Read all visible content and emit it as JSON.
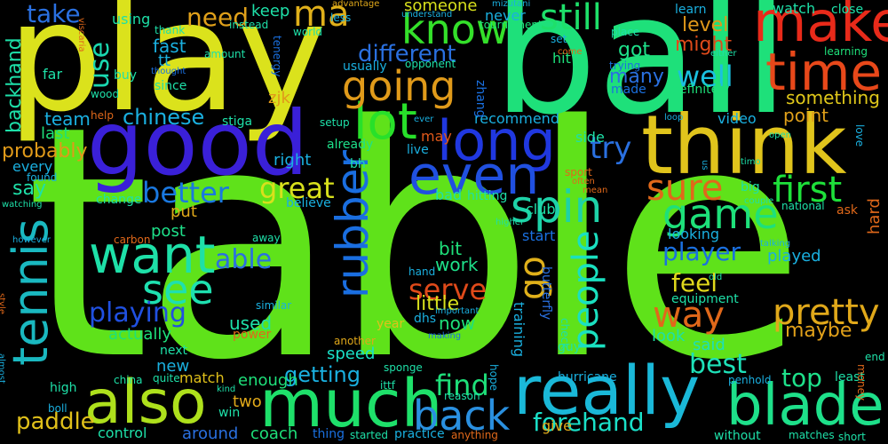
{
  "words": [
    {
      "text": "table",
      "color": "#5fe21a"
    },
    {
      "text": "ball",
      "color": "#1ee07a"
    },
    {
      "text": "play",
      "color": "#dbe21c"
    },
    {
      "text": "good",
      "color": "#3a20d8"
    },
    {
      "text": "think",
      "color": "#e0c41c"
    },
    {
      "text": "make",
      "color": "#e82a1a"
    },
    {
      "text": "time",
      "color": "#e8481a"
    },
    {
      "text": "really",
      "color": "#1ab8d8"
    },
    {
      "text": "much",
      "color": "#1ee06a"
    },
    {
      "text": "also",
      "color": "#aee01c"
    },
    {
      "text": "blade",
      "color": "#1ee08a"
    },
    {
      "text": "long",
      "color": "#2038e0"
    },
    {
      "text": "even",
      "color": "#2050e0"
    },
    {
      "text": "want",
      "color": "#1ee0a8"
    },
    {
      "text": "tennis",
      "color": "#1ab8c0"
    },
    {
      "text": "rubber",
      "color": "#1a6ee0"
    },
    {
      "text": "lot",
      "color": "#28e02a"
    },
    {
      "text": "going",
      "color": "#e09a1a"
    },
    {
      "text": "know",
      "color": "#34e02a"
    },
    {
      "text": "spin",
      "color": "#1ed2a8"
    },
    {
      "text": "game",
      "color": "#1ee07a"
    },
    {
      "text": "sure",
      "color": "#e0681a"
    },
    {
      "text": "first",
      "color": "#1ee03a"
    },
    {
      "text": "see",
      "color": "#1ee0b0"
    },
    {
      "text": "back",
      "color": "#2a90e0"
    },
    {
      "text": "way",
      "color": "#e0681a"
    },
    {
      "text": "pretty",
      "color": "#e0a81a"
    },
    {
      "text": "people",
      "color": "#1ae0c0"
    },
    {
      "text": "go",
      "color": "#e0b01a"
    },
    {
      "text": "still",
      "color": "#1ee06a"
    },
    {
      "text": "better",
      "color": "#1a78e0"
    },
    {
      "text": "great",
      "color": "#d8e01c"
    },
    {
      "text": "player",
      "color": "#1a70e0"
    },
    {
      "text": "best",
      "color": "#1ee0b8"
    },
    {
      "text": "playing",
      "color": "#2050e0"
    },
    {
      "text": "forehand",
      "color": "#1ae0c8"
    },
    {
      "text": "find",
      "color": "#1ee07a"
    },
    {
      "text": "serve",
      "color": "#e04a1a"
    },
    {
      "text": "feel",
      "color": "#e0d81c"
    },
    {
      "text": "top",
      "color": "#1ee08a"
    },
    {
      "text": "different",
      "color": "#2a70e0"
    },
    {
      "text": "well",
      "color": "#1ac0e0"
    },
    {
      "text": "ma",
      "color": "#e0b01a"
    },
    {
      "text": "need",
      "color": "#e0a01a"
    },
    {
      "text": "take",
      "color": "#2a70e0"
    },
    {
      "text": "use",
      "color": "#1ad8b0"
    },
    {
      "text": "able",
      "color": "#2a70e0"
    },
    {
      "text": "try",
      "color": "#2a70e0"
    },
    {
      "text": "chinese",
      "color": "#1ab0e0"
    },
    {
      "text": "getting",
      "color": "#1ab0e0"
    },
    {
      "text": "paddle",
      "color": "#e0c01a"
    },
    {
      "text": "backhand",
      "color": "#1ee0a8"
    },
    {
      "text": "probably",
      "color": "#e09a1a"
    },
    {
      "text": "maybe",
      "color": "#e0a01a"
    },
    {
      "text": "coach",
      "color": "#1ee07a"
    },
    {
      "text": "level",
      "color": "#e0981a"
    },
    {
      "text": "might",
      "color": "#e04a1a"
    },
    {
      "text": "something",
      "color": "#e0c81a"
    },
    {
      "text": "point",
      "color": "#e0a01a"
    },
    {
      "text": "many",
      "color": "#2a70e0"
    },
    {
      "text": "got",
      "color": "#1ee08a"
    },
    {
      "text": "someone",
      "color": "#d8e01c"
    },
    {
      "text": "keep",
      "color": "#1ee0a8"
    },
    {
      "text": "team",
      "color": "#1ab0e0"
    },
    {
      "text": "fast",
      "color": "#1ab0e0"
    },
    {
      "text": "say",
      "color": "#1ee0a8"
    },
    {
      "text": "little",
      "color": "#d8e01c"
    },
    {
      "text": "bit",
      "color": "#1ee07a"
    },
    {
      "text": "work",
      "color": "#1ee08a"
    },
    {
      "text": "now",
      "color": "#1ee07a"
    },
    {
      "text": "post",
      "color": "#1ee08a"
    },
    {
      "text": "put",
      "color": "#e0a81a"
    },
    {
      "text": "used",
      "color": "#1ee0a8"
    },
    {
      "text": "actually",
      "color": "#1ee07a"
    },
    {
      "text": "look",
      "color": "#1ee0a8"
    },
    {
      "text": "said",
      "color": "#1ee0b8"
    },
    {
      "text": "speed",
      "color": "#1ae0c8"
    },
    {
      "text": "match",
      "color": "#e0c01a"
    },
    {
      "text": "enough",
      "color": "#1ee07a"
    },
    {
      "text": "new",
      "color": "#1ab0e0"
    },
    {
      "text": "two",
      "color": "#e0a81a"
    },
    {
      "text": "around",
      "color": "#2a70e0"
    },
    {
      "text": "control",
      "color": "#1ee0a8"
    },
    {
      "text": "recommend",
      "color": "#1ab0e0"
    },
    {
      "text": "right",
      "color": "#1ab0e0"
    },
    {
      "text": "watch",
      "color": "#1ee0a8"
    },
    {
      "text": "played",
      "color": "#1ab0e0"
    },
    {
      "text": "looking",
      "color": "#1ab0e0"
    },
    {
      "text": "hard",
      "color": "#e0681a"
    },
    {
      "text": "tt",
      "color": "#1ab0e0"
    },
    {
      "text": "zjk",
      "color": "#e0981a"
    },
    {
      "text": "last",
      "color": "#1ee07a"
    },
    {
      "text": "every",
      "color": "#1ab0e0"
    },
    {
      "text": "club",
      "color": "#1ee0a8"
    },
    {
      "text": "start",
      "color": "#1a70e0"
    },
    {
      "text": "side",
      "color": "#1ee0a8"
    },
    {
      "text": "hit",
      "color": "#1ee07a"
    },
    {
      "text": "video",
      "color": "#1ab0e0"
    },
    {
      "text": "definitely",
      "color": "#1ee07a"
    },
    {
      "text": "made",
      "color": "#1a70e0"
    },
    {
      "text": "trying",
      "color": "#1a70e0"
    },
    {
      "text": "never",
      "color": "#1ab0e0"
    },
    {
      "text": "using",
      "color": "#1ee0a8"
    },
    {
      "text": "since",
      "color": "#1ee0a8"
    },
    {
      "text": "year",
      "color": "#e0c01a"
    },
    {
      "text": "bad",
      "color": "#1ee0a8"
    },
    {
      "text": "hitting",
      "color": "#1ee0a8"
    },
    {
      "text": "already",
      "color": "#1ee08a"
    },
    {
      "text": "live",
      "color": "#1ab0e0"
    },
    {
      "text": "may",
      "color": "#e0581a"
    },
    {
      "text": "close",
      "color": "#1ee0a8"
    },
    {
      "text": "learn",
      "color": "#1ab0e0"
    },
    {
      "text": "learning",
      "color": "#1ee07a"
    },
    {
      "text": "world",
      "color": "#1ee0a8"
    },
    {
      "text": "instead",
      "color": "#1ee0a8"
    },
    {
      "text": "amount",
      "color": "#1ee0a8"
    },
    {
      "text": "thank",
      "color": "#1ee0a8"
    },
    {
      "text": "far",
      "color": "#1ee0a8"
    },
    {
      "text": "buy",
      "color": "#1ee0a8"
    },
    {
      "text": "wood",
      "color": "#1ee0a8"
    },
    {
      "text": "help",
      "color": "#e0681a"
    },
    {
      "text": "stiga",
      "color": "#1ee0a8"
    },
    {
      "text": "setup",
      "color": "#1ee0a8"
    },
    {
      "text": "bh",
      "color": "#1ee0a8"
    },
    {
      "text": "change",
      "color": "#1ee0a8"
    },
    {
      "text": "believe",
      "color": "#1ab0e0"
    },
    {
      "text": "usually",
      "color": "#1ab0e0"
    },
    {
      "text": "opponent",
      "color": "#1ee0a8"
    },
    {
      "text": "tournament",
      "color": "#1ee07a"
    },
    {
      "text": "understand",
      "color": "#1ab0e0"
    },
    {
      "text": "advantage",
      "color": "#e0a81a"
    },
    {
      "text": "less",
      "color": "#1ab0e0"
    },
    {
      "text": "mizutani",
      "color": "#1ab0e0"
    },
    {
      "text": "set",
      "color": "#1ab0e0"
    },
    {
      "text": "place",
      "color": "#1ee0a8"
    },
    {
      "text": "either",
      "color": "#1ee0a8"
    },
    {
      "text": "come",
      "color": "#e0681a"
    },
    {
      "text": "zhang",
      "color": "#1a70e0"
    },
    {
      "text": "tenergy",
      "color": "#1a70e0"
    },
    {
      "text": "viscaria",
      "color": "#e0681a"
    },
    {
      "text": "thought",
      "color": "#1a70e0"
    },
    {
      "text": "loop",
      "color": "#1ab0e0"
    },
    {
      "text": "open",
      "color": "#1ee0a8"
    },
    {
      "text": "ever",
      "color": "#1ab0e0"
    },
    {
      "text": "love",
      "color": "#1ab0e0"
    },
    {
      "text": "timo",
      "color": "#1ee0a8"
    },
    {
      "text": "us",
      "color": "#1ab0e0"
    },
    {
      "text": "sport",
      "color": "#e0681a"
    },
    {
      "text": "often",
      "color": "#e0681a"
    },
    {
      "text": "mean",
      "color": "#e0681a"
    },
    {
      "text": "big",
      "color": "#1ee0a8"
    },
    {
      "text": "couple",
      "color": "#1ee0a8"
    },
    {
      "text": "national",
      "color": "#1ee0a8"
    },
    {
      "text": "ask",
      "color": "#e0681a"
    },
    {
      "text": "found",
      "color": "#1ab0e0"
    },
    {
      "text": "watching",
      "color": "#1ee0a8"
    },
    {
      "text": "however",
      "color": "#1ab0e0"
    },
    {
      "text": "carbon",
      "color": "#e0681a"
    },
    {
      "text": "away",
      "color": "#1ee0a8"
    },
    {
      "text": "higher",
      "color": "#1ee0a8"
    },
    {
      "text": "talking",
      "color": "#1ab0e0"
    },
    {
      "text": "hand",
      "color": "#1ab0e0"
    },
    {
      "text": "old",
      "color": "#1ee0a8"
    },
    {
      "text": "equipment",
      "color": "#1ee0a8"
    },
    {
      "text": "similar",
      "color": "#1ab0e0"
    },
    {
      "text": "power",
      "color": "#e0681a"
    },
    {
      "text": "dhs",
      "color": "#1ab0e0"
    },
    {
      "text": "important",
      "color": "#1ab0e0"
    },
    {
      "text": "making",
      "color": "#1a70e0"
    },
    {
      "text": "another",
      "color": "#e0a81a"
    },
    {
      "text": "check",
      "color": "#1ee0a8"
    },
    {
      "text": "butterfly",
      "color": "#2a70e0"
    },
    {
      "text": "training",
      "color": "#1ab0e0"
    },
    {
      "text": "guy",
      "color": "#1ee0a8"
    },
    {
      "text": "sponge",
      "color": "#1ee0a8"
    },
    {
      "text": "hurricane",
      "color": "#1ab0e0"
    },
    {
      "text": "penhold",
      "color": "#1ab0e0"
    },
    {
      "text": "least",
      "color": "#1ee0a8"
    },
    {
      "text": "end",
      "color": "#1ee0a8"
    },
    {
      "text": "money",
      "color": "#e0681a"
    },
    {
      "text": "almost",
      "color": "#1ab0e0"
    },
    {
      "text": "style",
      "color": "#e0681a"
    },
    {
      "text": "china",
      "color": "#1ee0a8"
    },
    {
      "text": "quite",
      "color": "#1ee0a8"
    },
    {
      "text": "kind",
      "color": "#1ee0a8"
    },
    {
      "text": "high",
      "color": "#1ee0a8"
    },
    {
      "text": "boll",
      "color": "#1ab0e0"
    },
    {
      "text": "win",
      "color": "#1ee0a8"
    },
    {
      "text": "next",
      "color": "#1ee0a8"
    },
    {
      "text": "hope",
      "color": "#1ab0e0"
    },
    {
      "text": "ittf",
      "color": "#1ee0a8"
    },
    {
      "text": "reason",
      "color": "#1ee0a8"
    },
    {
      "text": "thing",
      "color": "#1a70e0"
    },
    {
      "text": "started",
      "color": "#1ee0a8"
    },
    {
      "text": "practice",
      "color": "#1ab0e0"
    },
    {
      "text": "anything",
      "color": "#e0681a"
    },
    {
      "text": "give",
      "color": "#e0a81a"
    },
    {
      "text": "without",
      "color": "#1ee0a8"
    },
    {
      "text": "matches",
      "color": "#1ee0a8"
    },
    {
      "text": "short",
      "color": "#1ee0a8"
    }
  ]
}
